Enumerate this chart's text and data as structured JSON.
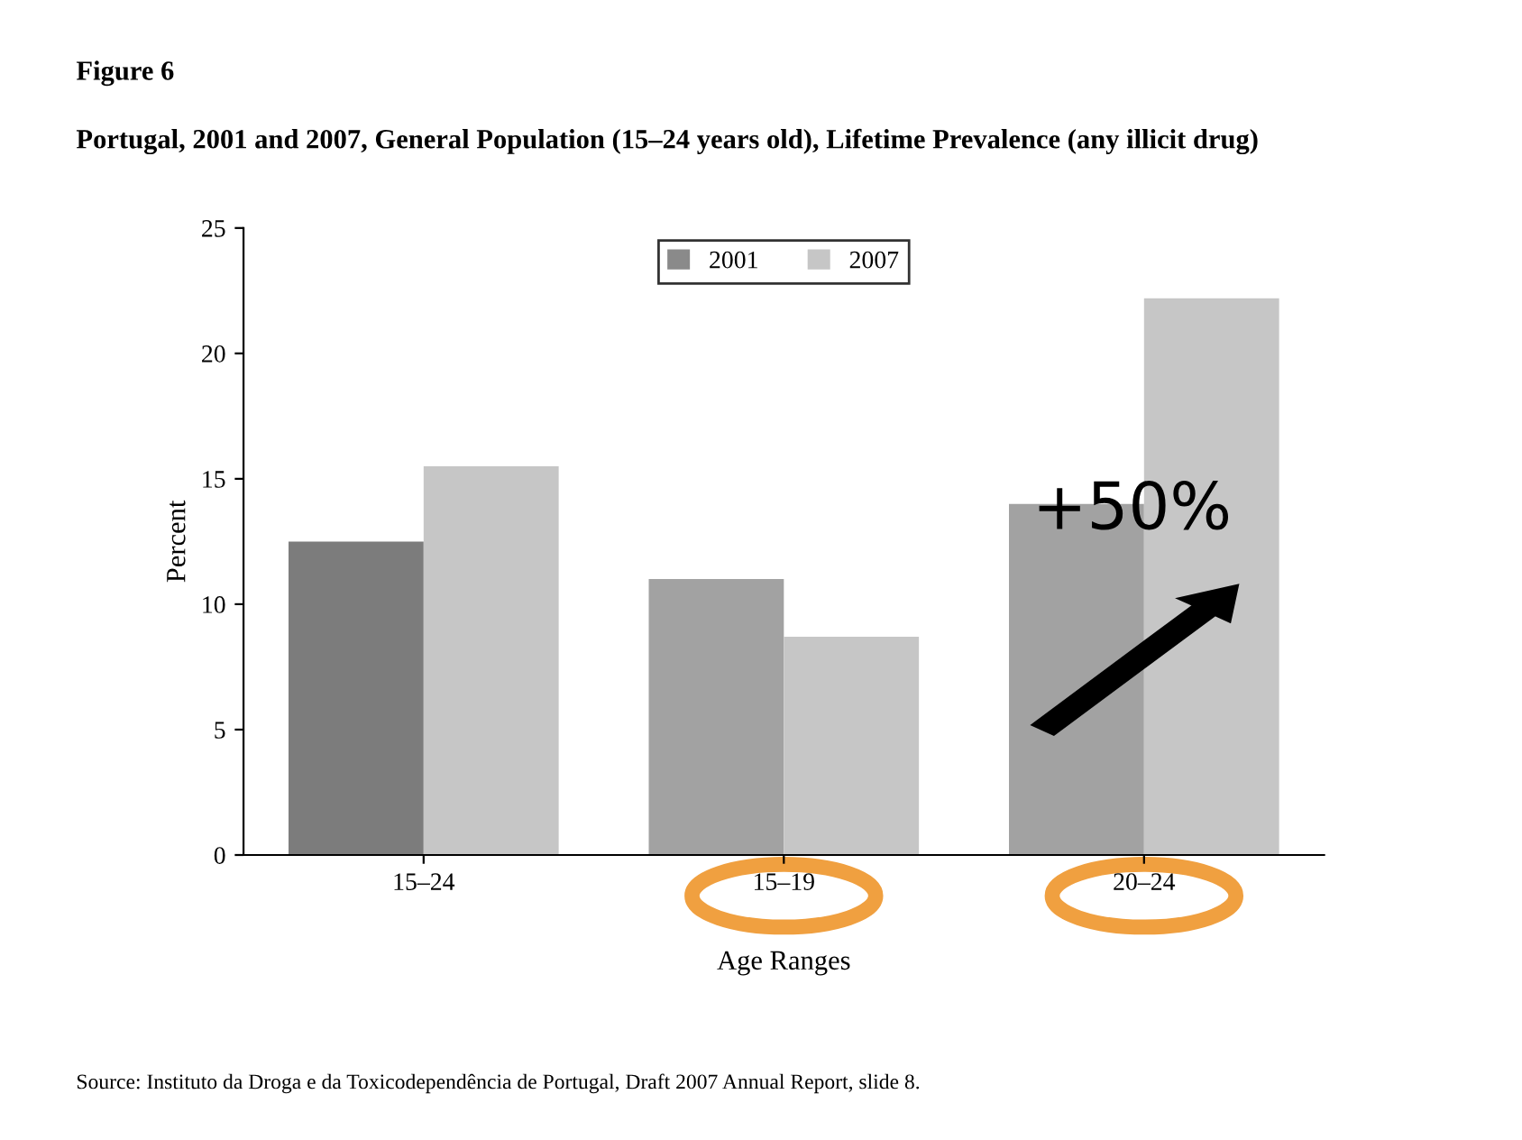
{
  "chart_data": {
    "type": "bar",
    "title": "Figure 6",
    "subtitle": "Portugal, 2001 and 2007, General Population (15–24 years old), Lifetime Prevalence (any illicit drug)",
    "xlabel": "Age Ranges",
    "ylabel": "Percent",
    "categories": [
      "15–24",
      "15–19",
      "20–24"
    ],
    "series": [
      {
        "name": "2001",
        "color": "#8a8a8a",
        "colors": [
          "#7c7c7c",
          "#a2a2a2",
          "#a2a2a2"
        ],
        "values": [
          12.5,
          11.0,
          14.0
        ]
      },
      {
        "name": "2007",
        "color": "#c6c6c6",
        "values": [
          15.5,
          8.7,
          22.2
        ]
      }
    ],
    "ylim": [
      0,
      25
    ],
    "yticks": [
      0,
      5,
      10,
      15,
      20,
      25
    ],
    "grid": false,
    "legend": "top",
    "annotations": [
      "+50%",
      "Source: Instituto da Droga e da Toxicodependência de Portugal, Draft 2007 Annual Report, slide 8."
    ]
  }
}
